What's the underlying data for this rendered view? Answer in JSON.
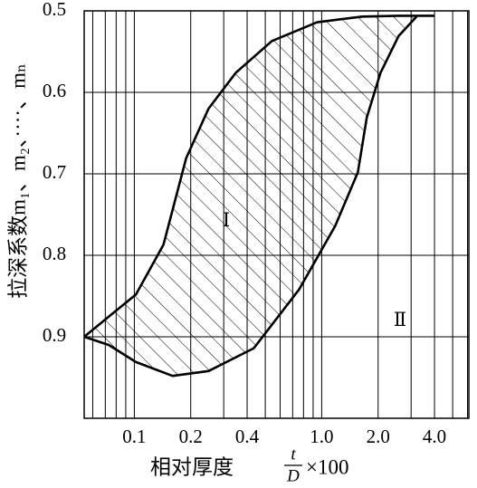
{
  "chart_data": {
    "type": "line",
    "ylabel": "拉深系数m₁、m₂、····、mₙ",
    "xlabel": {
      "text": "相对厚度",
      "numerator": "t",
      "denominator": "D",
      "suffix": "×100"
    },
    "annotations": [
      "Ⅰ",
      "Ⅱ"
    ],
    "xscale": "log",
    "xlim": [
      0.054,
      6.1
    ],
    "ylim": [
      1.0,
      0.5
    ],
    "xticks": [
      0.1,
      0.2,
      0.4,
      {
        "value": 1,
        "label": "1.0"
      },
      {
        "value": 2,
        "label": "2.0"
      },
      {
        "value": 4,
        "label": "4.0"
      }
    ],
    "x_grid": [
      0.06,
      0.07,
      0.08,
      0.09,
      0.1,
      0.2,
      0.3,
      0.4,
      0.5,
      0.6,
      0.7,
      0.8,
      0.9,
      1,
      2,
      3,
      4,
      5,
      6
    ],
    "yticks": [
      0.5,
      0.6,
      0.7,
      0.8,
      0.9
    ],
    "grid": true,
    "series": [
      {
        "color": "#000000",
        "x": [
          0.054,
          0.102,
          0.143,
          0.189,
          0.249,
          0.348,
          0.542,
          0.946,
          1.65,
          2.57,
          4.0
        ],
        "values": [
          0.9,
          0.848,
          0.787,
          0.681,
          0.62,
          0.576,
          0.537,
          0.514,
          0.507,
          0.506,
          0.506
        ]
      },
      {
        "color": "#000000",
        "x": [
          0.054,
          0.073,
          0.102,
          0.16,
          0.249,
          0.434,
          0.757,
          1.18,
          1.56,
          1.74,
          2.06,
          2.57,
          3.21
        ],
        "values": [
          0.9,
          0.91,
          0.931,
          0.948,
          0.942,
          0.914,
          0.842,
          0.764,
          0.698,
          0.631,
          0.576,
          0.531,
          0.507
        ]
      }
    ]
  }
}
